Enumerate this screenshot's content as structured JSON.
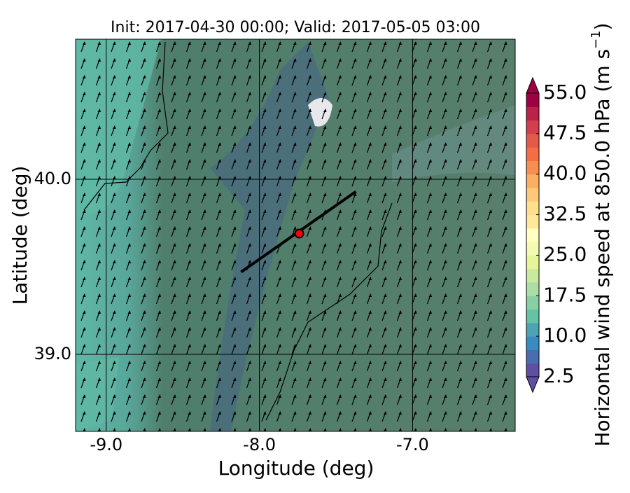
{
  "chart_data": {
    "type": "map",
    "title": "Init: 2017-04-30 00:00; Valid: 2017-05-05 03:00",
    "x_label": "Longitude (deg)",
    "y_label": "Latitude (deg)",
    "xlim": [
      -9.2,
      -6.33
    ],
    "ylim": [
      38.56,
      40.8
    ],
    "xticks": [
      {
        "value": -9,
        "label": "-9.0"
      },
      {
        "value": -8,
        "label": "-8.0"
      },
      {
        "value": -7,
        "label": "-7.0"
      }
    ],
    "yticks": [
      {
        "value": 39,
        "label": "39.0"
      },
      {
        "value": 40,
        "label": "40.0"
      }
    ],
    "grid": true,
    "transect": {
      "x": [
        -8.12,
        -7.37
      ],
      "y": [
        39.47,
        39.93
      ],
      "color": "#000000"
    },
    "point": {
      "x": -7.74,
      "y": 39.69,
      "color": "#ff0000"
    },
    "colorbar": {
      "label": [
        "Horizontal wind speed at 850.0 hPa (m s",
        "−1",
        ")"
      ],
      "ticks": [
        {
          "value": 2.5,
          "label": "2.5"
        },
        {
          "value": 10,
          "label": "10.0"
        },
        {
          "value": 17.5,
          "label": "17.5"
        },
        {
          "value": 25,
          "label": "25.0"
        },
        {
          "value": 32.5,
          "label": "32.5"
        },
        {
          "value": 40,
          "label": "40.0"
        },
        {
          "value": 47.5,
          "label": "47.5"
        },
        {
          "value": 55,
          "label": "55.0"
        }
      ],
      "colors": [
        "#5e4fa2",
        "#4a6db0",
        "#3a8bbf",
        "#4ba4b3",
        "#66c2a5",
        "#88d0a4",
        "#abdda4",
        "#c8e99e",
        "#e6f598",
        "#f3fab1",
        "#ffffbf",
        "#fee99a",
        "#fee08b",
        "#fdc877",
        "#fdae61",
        "#f88e52",
        "#f46d43",
        "#e45a49",
        "#d53e4f",
        "#bb2249",
        "#9e0142"
      ]
    }
  }
}
